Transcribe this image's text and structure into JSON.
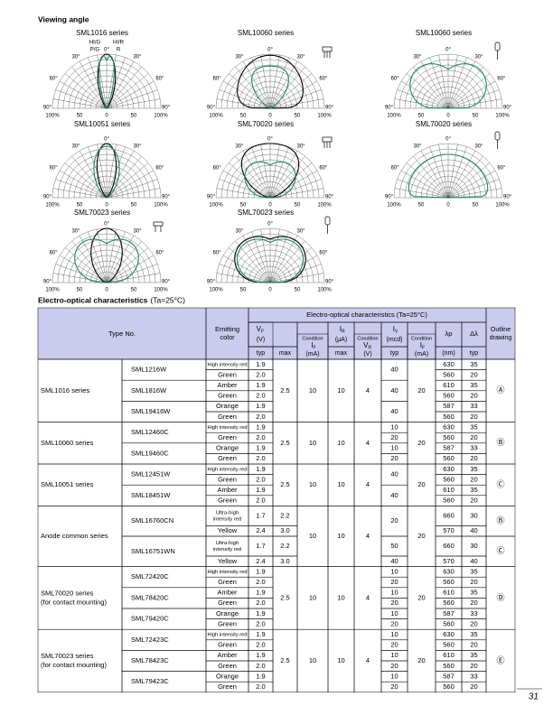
{
  "title": "Viewing angle",
  "polar_axis": {
    "angles": [
      "0°",
      "30°",
      "60°",
      "90°"
    ],
    "radial": [
      "100%",
      "50",
      "0",
      "50",
      "100%"
    ]
  },
  "diagrams": [
    {
      "title": "SML1016 series",
      "annotations": [
        "HI/G",
        "HI/R",
        "P/G",
        "R"
      ]
    },
    {
      "title": "SML10060 series"
    },
    {
      "title": "SML10060 series"
    },
    {
      "title": "SML10051 series"
    },
    {
      "title": "SML70020 series"
    },
    {
      "title": "SML70020 series"
    },
    {
      "title": "SML70023 series"
    },
    {
      "title": "SML70023 series"
    }
  ],
  "table_title": {
    "main": "Electro-optical characteristics",
    "note": "(Ta=25°C)"
  },
  "table": {
    "header": {
      "type_no": "Type No.",
      "emitting_color": [
        "Emitting",
        "color"
      ],
      "eo": "Electro-optical characteristics (Ta=25°C)",
      "vf": {
        "sym": "V",
        "sub": "F",
        "unit": "(V)"
      },
      "ir": {
        "sym": "I",
        "sub": "R",
        "unit": "(μA)"
      },
      "iv": {
        "sym": "I",
        "sub": "V",
        "unit": "(mcd)"
      },
      "if_cond": {
        "label": "Condition",
        "sym": "I",
        "sub": "F",
        "unit": "(mA)"
      },
      "vr_cond": {
        "label": "Condition",
        "sym": "V",
        "sub": "R",
        "unit": "(V)"
      },
      "iv_cond": {
        "label": "Condition",
        "sym": "I",
        "sub": "F",
        "unit": "(mA)"
      },
      "lp": "λp",
      "dl": "Δλ",
      "outline": [
        "Outline",
        "drawing"
      ],
      "typ": "typ",
      "max": "max",
      "nm": "(nm)"
    },
    "groups": [
      {
        "series": [
          "SML1016 series"
        ],
        "max": "2.5",
        "if": 10,
        "ir": 10,
        "vr": 4,
        "ifc": 20,
        "outline": "Ⓐ",
        "types": [
          {
            "type": "SML1216W",
            "iv": 40,
            "rows": [
              {
                "color": "High intensity red",
                "vf": "1.9",
                "lp": 630,
                "dl": 35
              },
              {
                "color": "Green",
                "vf": "2.0",
                "lp": 560,
                "dl": 20
              }
            ]
          },
          {
            "type": "SML1816W",
            "iv": 40,
            "rows": [
              {
                "color": "Amber",
                "vf": "1.9",
                "lp": 610,
                "dl": 35
              },
              {
                "color": "Green",
                "vf": "2.0",
                "lp": 560,
                "dl": 20
              }
            ]
          },
          {
            "type": "SML19416W",
            "iv": 40,
            "rows": [
              {
                "color": "Orange",
                "vf": "1.9",
                "lp": 587,
                "dl": 33
              },
              {
                "color": "Green",
                "vf": "2.0",
                "lp": 560,
                "dl": 20
              }
            ]
          }
        ]
      },
      {
        "series": [
          "SML10060 series"
        ],
        "max": "2.5",
        "if": 10,
        "ir": 10,
        "vr": 4,
        "ifc": 20,
        "outline": "Ⓑ",
        "types": [
          {
            "type": "SML12460C",
            "rows": [
              {
                "color": "High intensity red",
                "vf": "1.9",
                "iv": 10,
                "lp": 630,
                "dl": 35
              },
              {
                "color": "Green",
                "vf": "2.0",
                "iv": 20,
                "lp": 560,
                "dl": 20
              }
            ]
          },
          {
            "type": "SML19460C",
            "rows": [
              {
                "color": "Orange",
                "vf": "1.9",
                "iv": 10,
                "lp": 587,
                "dl": 33
              },
              {
                "color": "Green",
                "vf": "2.0",
                "iv": 20,
                "lp": 560,
                "dl": 20
              }
            ]
          }
        ]
      },
      {
        "series": [
          "SML10051 series"
        ],
        "max": "2.5",
        "if": 10,
        "ir": 10,
        "vr": 4,
        "ifc": 20,
        "outline": "Ⓒ",
        "types": [
          {
            "type": "SML12451W",
            "iv": 40,
            "rows": [
              {
                "color": "High intensity red",
                "vf": "1.9",
                "lp": 630,
                "dl": 35
              },
              {
                "color": "Green",
                "vf": "2.0",
                "lp": 560,
                "dl": 20
              }
            ]
          },
          {
            "type": "SML18451W",
            "iv": 40,
            "rows": [
              {
                "color": "Amber",
                "vf": "1.9",
                "lp": 610,
                "dl": 35
              },
              {
                "color": "Green",
                "vf": "2.0",
                "lp": 560,
                "dl": 20
              }
            ]
          }
        ]
      },
      {
        "series": [
          "Anode common series"
        ],
        "if": 10,
        "ir": 10,
        "vr": 4,
        "ifc": 20,
        "types": [
          {
            "type": "SML16760CN",
            "iv": 20,
            "outline": "Ⓑ",
            "rows": [
              {
                "color": [
                  "Ultra-high",
                  "intensity red"
                ],
                "vf": "1.7",
                "max": "2.2",
                "lp": 660,
                "dl": 30
              },
              {
                "color": "Yellow",
                "vf": "2.4",
                "max": "3.0",
                "lp": 570,
                "dl": 40
              }
            ]
          },
          {
            "type": "SML16751WN",
            "outline": "Ⓒ",
            "rows": [
              {
                "color": [
                  "Ultra-high",
                  "intensity red"
                ],
                "vf": "1.7",
                "max": "2.2",
                "iv": 50,
                "lp": 660,
                "dl": 30
              },
              {
                "color": "Yellow",
                "vf": "2.4",
                "max": "3.0",
                "iv": 40,
                "lp": 570,
                "dl": 40
              }
            ]
          }
        ]
      },
      {
        "series": [
          "SML70020 series",
          "(for contact mounting)"
        ],
        "max": "2.5",
        "if": 10,
        "ir": 10,
        "vr": 4,
        "ifc": 20,
        "outline": "Ⓓ",
        "types": [
          {
            "type": "SML72420C",
            "rows": [
              {
                "color": "High intensity red",
                "vf": "1.9",
                "iv": 10,
                "lp": 630,
                "dl": 35
              },
              {
                "color": "Green",
                "vf": "2.0",
                "iv": 20,
                "lp": 560,
                "dl": 20
              }
            ]
          },
          {
            "type": "SML78420C",
            "rows": [
              {
                "color": "Amber",
                "vf": "1.9",
                "iv": 10,
                "lp": 610,
                "dl": 35
              },
              {
                "color": "Green",
                "vf": "2.0",
                "iv": 20,
                "lp": 560,
                "dl": 20
              }
            ]
          },
          {
            "type": "SML79420C",
            "rows": [
              {
                "color": "Orange",
                "vf": "1.9",
                "iv": 10,
                "lp": 587,
                "dl": 33
              },
              {
                "color": "Green",
                "vf": "2.0",
                "iv": 20,
                "lp": 560,
                "dl": 20
              }
            ]
          }
        ]
      },
      {
        "series": [
          "SML70023 series",
          "(for contact mounting)"
        ],
        "max": "2.5",
        "if": 10,
        "ir": 10,
        "vr": 4,
        "ifc": 20,
        "outline": "Ⓔ",
        "types": [
          {
            "type": "SML72423C",
            "rows": [
              {
                "color": "High intensity red",
                "vf": "1.9",
                "iv": 10,
                "lp": 630,
                "dl": 35
              },
              {
                "color": "Green",
                "vf": "2.0",
                "iv": 20,
                "lp": 560,
                "dl": 20
              }
            ]
          },
          {
            "type": "SML78423C",
            "rows": [
              {
                "color": "Amber",
                "vf": "1.9",
                "iv": 10,
                "lp": 610,
                "dl": 35
              },
              {
                "color": "Green",
                "vf": "2.0",
                "iv": 20,
                "lp": 560,
                "dl": 20
              }
            ]
          },
          {
            "type": "SML79423C",
            "rows": [
              {
                "color": "Orange",
                "vf": "1.9",
                "iv": 10,
                "lp": 587,
                "dl": 33
              },
              {
                "color": "Green",
                "vf": "2.0",
                "iv": 20,
                "lp": 560,
                "dl": 20
              }
            ]
          }
        ]
      }
    ]
  },
  "page_number": "31"
}
